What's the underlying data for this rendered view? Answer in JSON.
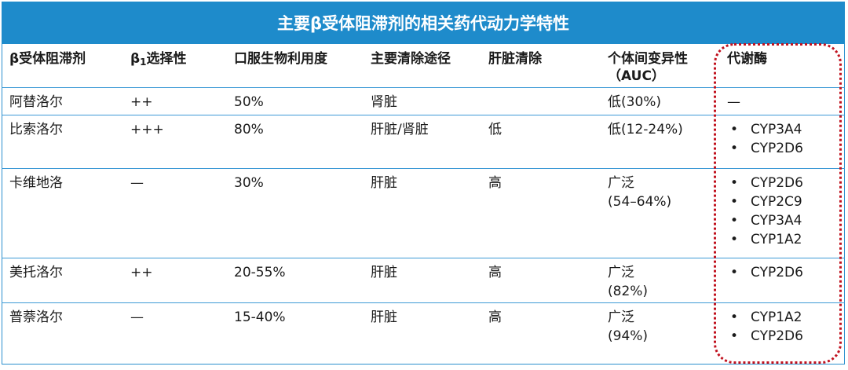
{
  "title": "主要β受体阻滞剂的相关药代动力学特性",
  "headers": {
    "drug": "β受体阻滞剂",
    "selectivity_base": "β",
    "selectivity_sub": "1",
    "selectivity_tail": "选择性",
    "bioavailability": "口服生物利用度",
    "elimination": "主要清除途径",
    "hepatic": "肝脏清除",
    "variability_line1": "个体间变异性",
    "variability_line2": "（AUC）",
    "enzymes": "代谢酶"
  },
  "rows": [
    {
      "drug": "阿替洛尔",
      "selectivity": "++",
      "bioavailability": "50%",
      "elimination": "肾脏",
      "hepatic": "",
      "variability": "低(30%)",
      "enzyme_text": "—",
      "enzymes": []
    },
    {
      "drug": "比索洛尔",
      "selectivity": "+++",
      "bioavailability": "80%",
      "elimination": "肝脏/肾脏",
      "hepatic": "低",
      "variability": "低(12-24%)",
      "enzyme_text": "",
      "enzymes": [
        "CYP3A4",
        "CYP2D6"
      ]
    },
    {
      "drug": "卡维地洛",
      "selectivity": "—",
      "bioavailability": "30%",
      "elimination": "肝脏",
      "hepatic": "高",
      "variability_line1": "广泛",
      "variability_line2": "(54–64%)",
      "enzymes": [
        "CYP2D6",
        "CYP2C9",
        "CYP3A4",
        "CYP1A2"
      ]
    },
    {
      "drug": "美托洛尔",
      "selectivity": "++",
      "bioavailability": "20-55%",
      "elimination": "肝脏",
      "hepatic": "高",
      "variability_line1": "广泛",
      "variability_line2": "(82%)",
      "enzymes": [
        "CYP2D6"
      ]
    },
    {
      "drug": "普萘洛尔",
      "selectivity": "—",
      "bioavailability": "15-40%",
      "elimination": "肝脏",
      "hepatic": "高",
      "variability_line1": "广泛",
      "variability_line2": "(94%)",
      "enzymes": [
        "CYP1A2",
        "CYP2D6"
      ]
    }
  ],
  "colors": {
    "title_bg": "#1e8bcb",
    "rule": "#3d9ad6",
    "highlight": "#c1121f"
  }
}
